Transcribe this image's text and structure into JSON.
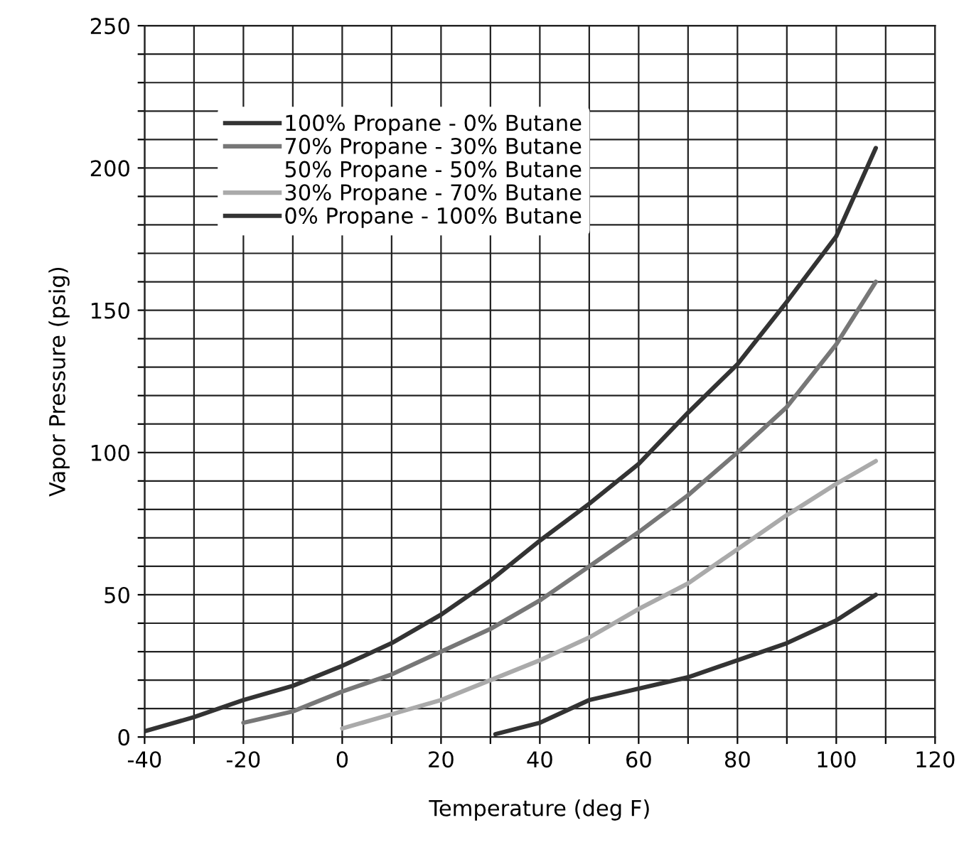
{
  "chart_data": {
    "type": "line",
    "xlabel": "Temperature (deg F)",
    "ylabel": "Vapor Pressure (psig)",
    "xlim": [
      -40,
      120
    ],
    "ylim": [
      0,
      250
    ],
    "xticks": [
      -40,
      {
        "value": -30,
        "label": null
      },
      -20,
      {
        "value": -10,
        "label": null
      },
      0,
      {
        "value": 10,
        "label": null
      },
      20,
      {
        "value": 30,
        "label": null
      },
      40,
      {
        "value": 50,
        "label": null
      },
      60,
      {
        "value": 70,
        "label": null
      },
      80,
      {
        "value": 90,
        "label": null
      },
      100,
      {
        "value": 110,
        "label": null
      },
      120
    ],
    "yticks": [
      0,
      {
        "value": 10,
        "label": null
      },
      {
        "value": 20,
        "label": null
      },
      {
        "value": 30,
        "label": null
      },
      {
        "value": 40,
        "label": null
      },
      50,
      {
        "value": 60,
        "label": null
      },
      {
        "value": 70,
        "label": null
      },
      {
        "value": 80,
        "label": null
      },
      {
        "value": 90,
        "label": null
      },
      100,
      {
        "value": 110,
        "label": null
      },
      {
        "value": 120,
        "label": null
      },
      {
        "value": 130,
        "label": null
      },
      {
        "value": 140,
        "label": null
      },
      150,
      {
        "value": 160,
        "label": null
      },
      {
        "value": 170,
        "label": null
      },
      {
        "value": 180,
        "label": null
      },
      {
        "value": 190,
        "label": null
      },
      200,
      {
        "value": 210,
        "label": null
      },
      {
        "value": 220,
        "label": null
      },
      {
        "value": 230,
        "label": null
      },
      {
        "value": 240,
        "label": null
      },
      250
    ],
    "grid": true,
    "legend": "top left",
    "line_style": "solid",
    "marker": "none",
    "series": [
      {
        "name": "100% Propane - 0% Butane",
        "color": "#333333",
        "x": [
          -40,
          -30,
          -20,
          -10,
          0,
          10,
          20,
          30,
          40,
          50,
          60,
          70,
          80,
          90,
          100,
          108
        ],
        "values": [
          2,
          7,
          13,
          18,
          25,
          33,
          43,
          55,
          69,
          82,
          96,
          114,
          131,
          153,
          176,
          207
        ]
      },
      {
        "name": "70% Propane - 30% Butane",
        "color": "#777777",
        "x": [
          -20,
          -10,
          0,
          10,
          20,
          30,
          40,
          50,
          60,
          70,
          80,
          90,
          100,
          108
        ],
        "values": [
          5,
          9,
          16,
          22,
          30,
          38,
          48,
          60,
          72,
          85,
          100,
          116,
          138,
          160
        ]
      },
      {
        "name": "50% Propane - 50% Butane"
      },
      {
        "name": "30% Propane - 70% Butane",
        "color": "#aaaaaa",
        "x": [
          0,
          10,
          20,
          30,
          40,
          50,
          60,
          70,
          80,
          90,
          100,
          108
        ],
        "values": [
          3,
          8,
          13,
          20,
          27,
          35,
          45,
          54,
          66,
          78,
          89,
          97
        ]
      },
      {
        "name": "0% Propane - 100% Butane",
        "color": "#333333",
        "x": [
          31,
          40,
          50,
          70,
          80,
          90,
          100,
          108
        ],
        "values": [
          1,
          5,
          13,
          21,
          27,
          33,
          41,
          50
        ]
      }
    ]
  }
}
